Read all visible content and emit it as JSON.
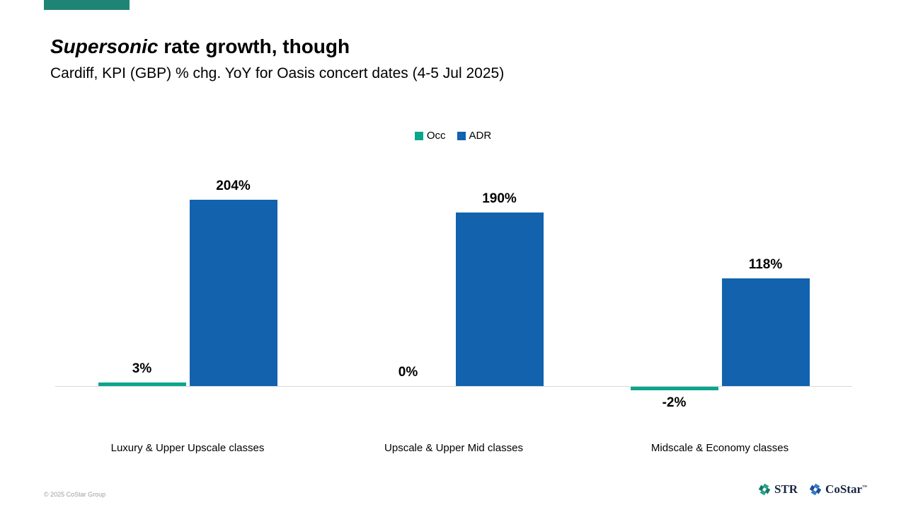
{
  "slide": {
    "title_emphasis": "Supersonic",
    "title_rest": " rate growth, though",
    "subtitle": "Cardiff, KPI (GBP) % chg. YoY for Oasis concert dates (4-5 Jul 2025)",
    "accent_color": "#1E8575"
  },
  "chart_data": {
    "type": "bar",
    "title": "Cardiff, KPI (GBP) % chg. YoY for Oasis concert dates (4-5 Jul 2025)",
    "categories": [
      "Luxury & Upper Upscale classes",
      "Upscale & Upper Mid classes",
      "Midscale & Economy classes"
    ],
    "series": [
      {
        "name": "Occ",
        "color": "#0AA58C",
        "values": [
          3,
          0,
          -2
        ]
      },
      {
        "name": "ADR",
        "color": "#1262AE",
        "values": [
          204,
          190,
          118
        ]
      }
    ],
    "value_suffix": "%",
    "baseline": 0,
    "ylim": [
      -10,
      220
    ],
    "grid": false,
    "axis_visible": "x-only",
    "legend_position": "top-center",
    "data_labels": true,
    "xlabel": "",
    "ylabel": ""
  },
  "colors": {
    "axis_line": "#D9D9D9",
    "footer_text": "#9E9E9E"
  },
  "footer": {
    "copyright": "© 2025 CoStar Group",
    "logos": [
      {
        "text": "STR",
        "trademark": "",
        "mark_dark": "#157B66",
        "mark_light": "#27A08B"
      },
      {
        "text": "CoStar",
        "trademark": "™",
        "mark_dark": "#1C4E9E",
        "mark_light": "#2E7BC5"
      }
    ]
  }
}
